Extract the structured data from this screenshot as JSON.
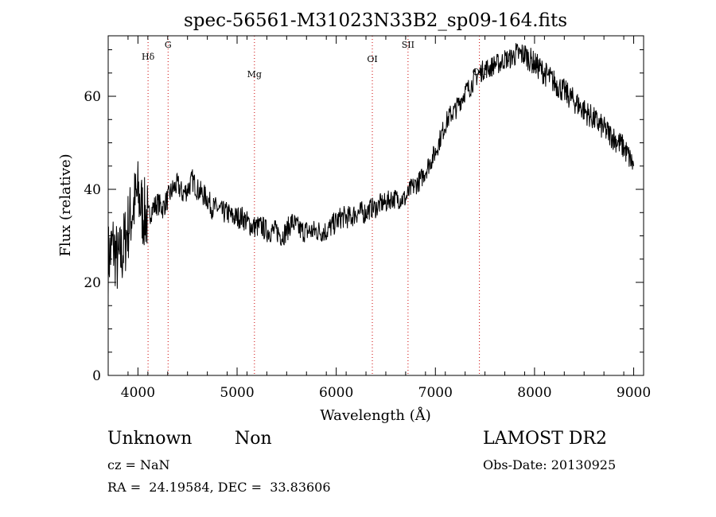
{
  "chart_data": {
    "type": "line",
    "title": "spec-56561-M31023N33B2_sp09-164.fits",
    "xlabel": "Wavelength (Å)",
    "ylabel": "Flux (relative)",
    "xlim": [
      3700,
      9100
    ],
    "ylim": [
      0,
      73
    ],
    "x_ticks": [
      4000,
      5000,
      6000,
      7000,
      8000,
      9000
    ],
    "y_ticks": [
      0,
      20,
      40,
      60
    ],
    "grid": false,
    "line_color": "#000000",
    "marker_color": "#cc0000",
    "spectral_lines": [
      {
        "label": "Hδ",
        "x": 4102
      },
      {
        "label": "G",
        "x": 4304
      },
      {
        "label": "Mg",
        "x": 5175
      },
      {
        "label": "OI",
        "x": 6364
      },
      {
        "label": "SII",
        "x": 6724
      },
      {
        "label": "OII",
        "x": 7444
      }
    ],
    "series": [
      {
        "x": [
          3700,
          3750,
          3800,
          3850,
          3900,
          3950,
          4000,
          4050,
          4100,
          4150,
          4200,
          4250,
          4300,
          4350,
          4400,
          4450,
          4500,
          4550,
          4600,
          4650,
          4700,
          4750,
          4800,
          4850,
          4900,
          4950,
          5000,
          5050,
          5100,
          5150,
          5200,
          5250,
          5300,
          5350,
          5400,
          5450,
          5500,
          5550,
          5600,
          5650,
          5700,
          5750,
          5800,
          5850,
          5900,
          5950,
          6000,
          6050,
          6100,
          6150,
          6200,
          6250,
          6300,
          6350,
          6400,
          6450,
          6500,
          6550,
          6600,
          6650,
          6700,
          6750,
          6800,
          6850,
          6900,
          6950,
          7000,
          7050,
          7100,
          7150,
          7200,
          7250,
          7300,
          7350,
          7400,
          7450,
          7500,
          7550,
          7600,
          7650,
          7700,
          7750,
          7800,
          7850,
          7900,
          7950,
          8000,
          8050,
          8100,
          8150,
          8200,
          8250,
          8300,
          8350,
          8400,
          8450,
          8500,
          8550,
          8600,
          8650,
          8700,
          8750,
          8800,
          8850,
          8900,
          8950,
          9000
        ],
        "values": [
          25,
          28,
          24,
          27,
          32,
          36,
          39,
          35,
          34,
          36,
          37,
          36,
          38,
          40,
          41,
          39,
          40,
          42,
          40,
          39,
          38,
          36,
          36,
          35,
          35,
          34,
          34,
          34,
          33,
          32,
          32,
          32,
          31,
          31,
          31,
          30,
          31,
          33,
          32,
          31,
          31,
          31,
          31,
          31,
          31,
          32,
          33,
          34,
          34,
          34,
          35,
          35,
          35,
          36,
          36,
          37,
          37,
          38,
          38,
          38,
          38,
          40,
          41,
          42,
          44,
          46,
          48,
          51,
          54,
          56,
          57,
          59,
          61,
          62,
          64,
          65,
          66,
          66,
          67,
          67,
          68,
          68,
          69,
          69,
          69,
          68,
          67,
          66,
          65,
          64,
          63,
          62,
          61,
          60,
          59,
          58,
          57,
          56,
          55,
          54,
          53,
          52,
          51,
          50,
          49,
          47,
          45
        ]
      }
    ]
  },
  "info": {
    "class": "Unknown",
    "subclass": "Non",
    "cz": "cz = NaN",
    "radec": "RA =  24.19584, DEC =  33.83606",
    "survey": "LAMOST DR2",
    "obsdate": "Obs-Date: 20130925"
  }
}
